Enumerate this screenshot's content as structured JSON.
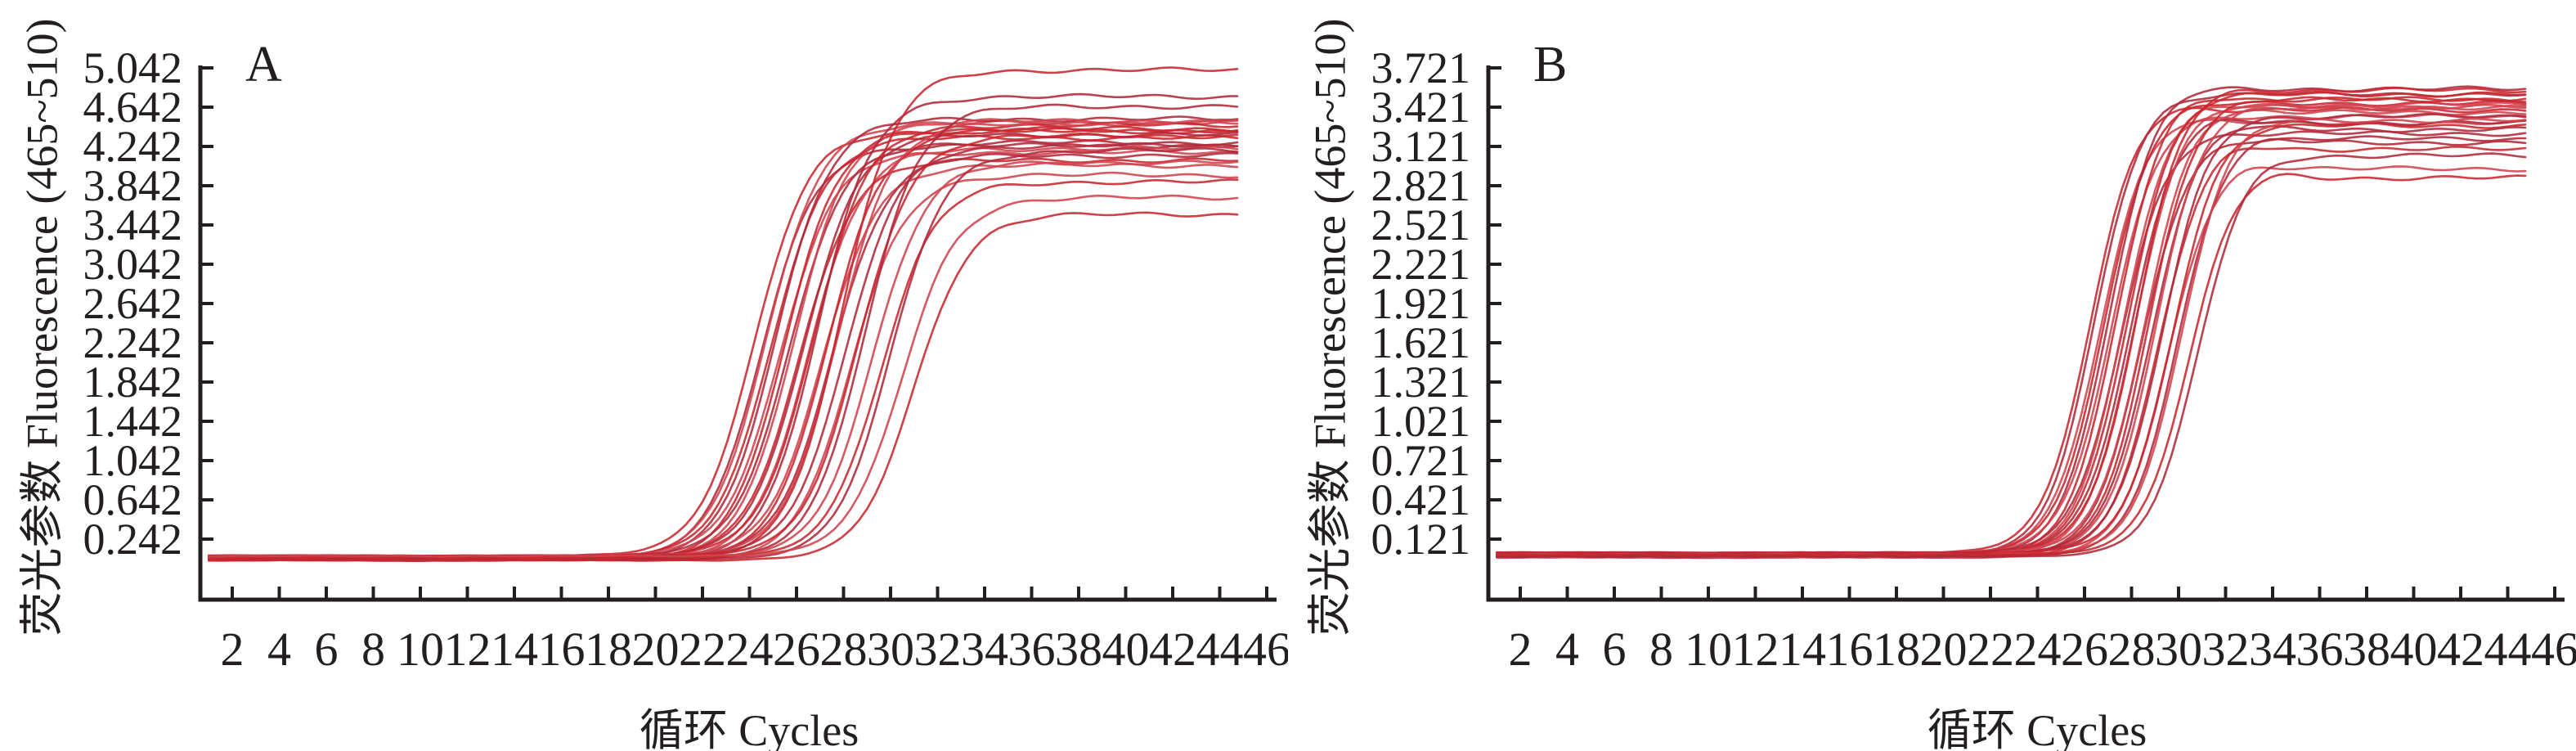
{
  "figure": {
    "background": "#ffffff",
    "axis_color": "#231f20",
    "text_color": "#231f20",
    "curve_colors": [
      "#c9262e",
      "#b0293a",
      "#d0424d"
    ]
  },
  "chart_data": [
    {
      "type": "line",
      "panel_label": "A",
      "x_label": "循环 Cycles",
      "y_label": "荧光参数 Fluorescence (465~510)",
      "x_ticks": [
        2,
        4,
        6,
        8,
        10,
        12,
        14,
        16,
        18,
        20,
        22,
        24,
        26,
        28,
        30,
        32,
        34,
        36,
        38,
        40,
        42,
        44,
        46
      ],
      "y_ticks": [
        0.242,
        0.642,
        1.042,
        1.442,
        1.842,
        2.242,
        2.642,
        3.042,
        3.442,
        3.842,
        4.242,
        4.642,
        5.042
      ],
      "x_range": [
        1,
        45
      ],
      "baseline": 0.05,
      "rise_width": 1.15,
      "overshoot": 0,
      "curves": [
        {
          "ct": 24.2,
          "plateau": 4.4
        },
        {
          "ct": 24.5,
          "plateau": 4.25
        },
        {
          "ct": 24.7,
          "plateau": 4.48
        },
        {
          "ct": 24.9,
          "plateau": 4.33
        },
        {
          "ct": 25.1,
          "plateau": 4.52
        },
        {
          "ct": 25.3,
          "plateau": 4.18
        },
        {
          "ct": 25.5,
          "plateau": 4.42
        },
        {
          "ct": 25.7,
          "plateau": 4.28
        },
        {
          "ct": 25.9,
          "plateau": 4.5
        },
        {
          "ct": 26.1,
          "plateau": 4.1
        },
        {
          "ct": 26.3,
          "plateau": 4.36
        },
        {
          "ct": 26.5,
          "plateau": 4.22
        },
        {
          "ct": 26.7,
          "plateau": 4.46
        },
        {
          "ct": 26.9,
          "plateau": 4.75
        },
        {
          "ct": 27.1,
          "plateau": 4.05
        },
        {
          "ct": 27.3,
          "plateau": 4.4
        },
        {
          "ct": 27.5,
          "plateau": 4.15
        },
        {
          "ct": 27.7,
          "plateau": 4.48
        },
        {
          "ct": 27.9,
          "plateau": 5.02
        },
        {
          "ct": 28.1,
          "plateau": 4.25
        },
        {
          "ct": 28.3,
          "plateau": 3.95
        },
        {
          "ct": 28.6,
          "plateau": 4.35
        },
        {
          "ct": 28.9,
          "plateau": 4.65
        },
        {
          "ct": 29.2,
          "plateau": 4.08
        },
        {
          "ct": 29.6,
          "plateau": 3.88
        },
        {
          "ct": 30.0,
          "plateau": 4.2
        },
        {
          "ct": 30.5,
          "plateau": 3.72
        },
        {
          "ct": 31.0,
          "plateau": 3.55
        }
      ]
    },
    {
      "type": "line",
      "panel_label": "B",
      "x_label": "循环 Cycles",
      "y_label": "荧光参数 Fluorescence (465~510)",
      "x_ticks": [
        2,
        4,
        6,
        8,
        10,
        12,
        14,
        16,
        18,
        20,
        22,
        24,
        26,
        28,
        30,
        32,
        34,
        36,
        38,
        40,
        42,
        44,
        46
      ],
      "y_ticks": [
        0.121,
        0.421,
        0.721,
        1.021,
        1.321,
        1.621,
        1.921,
        2.221,
        2.521,
        2.821,
        3.121,
        3.421,
        3.721
      ],
      "x_range": [
        1,
        45
      ],
      "baseline": 0.0,
      "rise_width": 1.0,
      "overshoot": 1,
      "curves": [
        {
          "ct": 26.2,
          "plateau": 3.4
        },
        {
          "ct": 26.4,
          "plateau": 3.52
        },
        {
          "ct": 26.6,
          "plateau": 3.3
        },
        {
          "ct": 26.8,
          "plateau": 3.45
        },
        {
          "ct": 27.0,
          "plateau": 3.56
        },
        {
          "ct": 27.1,
          "plateau": 3.35
        },
        {
          "ct": 27.3,
          "plateau": 3.48
        },
        {
          "ct": 27.5,
          "plateau": 3.22
        },
        {
          "ct": 27.6,
          "plateau": 3.42
        },
        {
          "ct": 27.8,
          "plateau": 3.52
        },
        {
          "ct": 27.9,
          "plateau": 3.3
        },
        {
          "ct": 28.1,
          "plateau": 3.44
        },
        {
          "ct": 28.2,
          "plateau": 3.55
        },
        {
          "ct": 28.4,
          "plateau": 3.18
        },
        {
          "ct": 28.5,
          "plateau": 3.38
        },
        {
          "ct": 28.7,
          "plateau": 3.48
        },
        {
          "ct": 28.8,
          "plateau": 3.25
        },
        {
          "ct": 29.0,
          "plateau": 3.42
        },
        {
          "ct": 29.1,
          "plateau": 3.1
        },
        {
          "ct": 29.3,
          "plateau": 3.35
        },
        {
          "ct": 29.5,
          "plateau": 2.95
        },
        {
          "ct": 29.7,
          "plateau": 3.28
        },
        {
          "ct": 29.9,
          "plateau": 3.15
        },
        {
          "ct": 30.1,
          "plateau": 3.32
        },
        {
          "ct": 30.4,
          "plateau": 2.88
        },
        {
          "ct": 30.8,
          "plateau": 3.05
        }
      ]
    }
  ]
}
